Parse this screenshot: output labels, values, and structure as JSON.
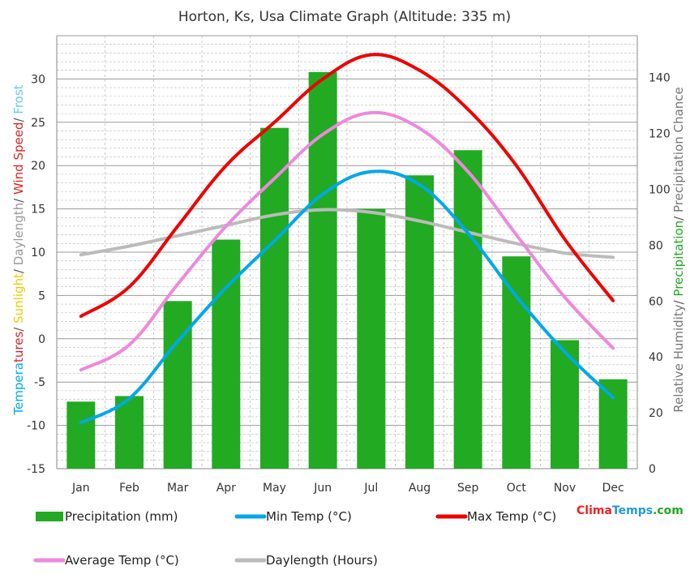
{
  "chart_data": {
    "type": "bar",
    "title": "Horton, Ks, Usa Climate Graph (Altitude: 335 m)",
    "categories": [
      "Jan",
      "Feb",
      "Mar",
      "Apr",
      "May",
      "Jun",
      "Jul",
      "Aug",
      "Sep",
      "Oct",
      "Nov",
      "Dec"
    ],
    "y_left": {
      "ylim": [
        -15,
        35
      ],
      "ticks": [
        -15,
        -10,
        -5,
        0,
        5,
        10,
        15,
        20,
        25,
        30
      ],
      "label_parts": [
        {
          "text": "Tempera",
          "color": "#00aaee"
        },
        {
          "text": "tures",
          "color": "#dd2222"
        },
        {
          "text": "/ ",
          "color": "#555555"
        },
        {
          "text": "Sunlight",
          "color": "#eecc00"
        },
        {
          "text": "/ ",
          "color": "#555555"
        },
        {
          "text": "Daylength",
          "color": "#999999"
        },
        {
          "text": "/ ",
          "color": "#555555"
        },
        {
          "text": "Wind Speed",
          "color": "#dd2222"
        },
        {
          "text": "/ ",
          "color": "#555555"
        },
        {
          "text": "Frost",
          "color": "#66ccee"
        }
      ]
    },
    "y_right": {
      "ylim": [
        0,
        155
      ],
      "ticks": [
        0,
        20,
        40,
        60,
        80,
        100,
        120,
        140
      ],
      "label_parts": [
        {
          "text": "Relative Humidity",
          "color": "#777777"
        },
        {
          "text": "/ ",
          "color": "#555555"
        },
        {
          "text": "Precipitation",
          "color": "#22aa22"
        },
        {
          "text": "/ ",
          "color": "#555555"
        },
        {
          "text": "Precipitation Chance",
          "color": "#777777"
        }
      ]
    },
    "series": [
      {
        "name": "Precipitation (mm)",
        "type": "bar",
        "axis": "right",
        "color": "#22aa22",
        "values": [
          24,
          26,
          60,
          82,
          122,
          142,
          93,
          105,
          114,
          76,
          46,
          32
        ]
      },
      {
        "name": "Min Temp (°C)",
        "type": "line",
        "axis": "left",
        "color": "#00a8e8",
        "values": [
          -9.7,
          -6.9,
          -0.3,
          5.9,
          11.3,
          16.7,
          19.3,
          17.8,
          12.2,
          4.9,
          -1.5,
          -6.8
        ]
      },
      {
        "name": "Max Temp (°C)",
        "type": "line",
        "axis": "left",
        "color": "#ee0000",
        "values": [
          2.6,
          6.0,
          13.0,
          20.0,
          25.0,
          30.0,
          32.8,
          31.0,
          26.5,
          20.0,
          11.5,
          4.4
        ]
      },
      {
        "name": "Average Temp (°C)",
        "type": "line",
        "axis": "left",
        "color": "#ee88dd",
        "values": [
          -3.6,
          -0.7,
          6.3,
          13.0,
          18.5,
          23.6,
          26.1,
          24.3,
          19.3,
          12.0,
          4.8,
          -1.1
        ]
      },
      {
        "name": "Daylength (Hours)",
        "type": "line",
        "axis": "left",
        "color": "#bbbbbb",
        "values": [
          9.7,
          10.7,
          11.9,
          13.1,
          14.3,
          14.9,
          14.6,
          13.6,
          12.3,
          11.0,
          9.9,
          9.4
        ]
      }
    ],
    "grid": true,
    "legend_placement": "bottom",
    "watermark": {
      "clima": "Clima",
      "temps": "Temps",
      "com": ".com"
    }
  }
}
